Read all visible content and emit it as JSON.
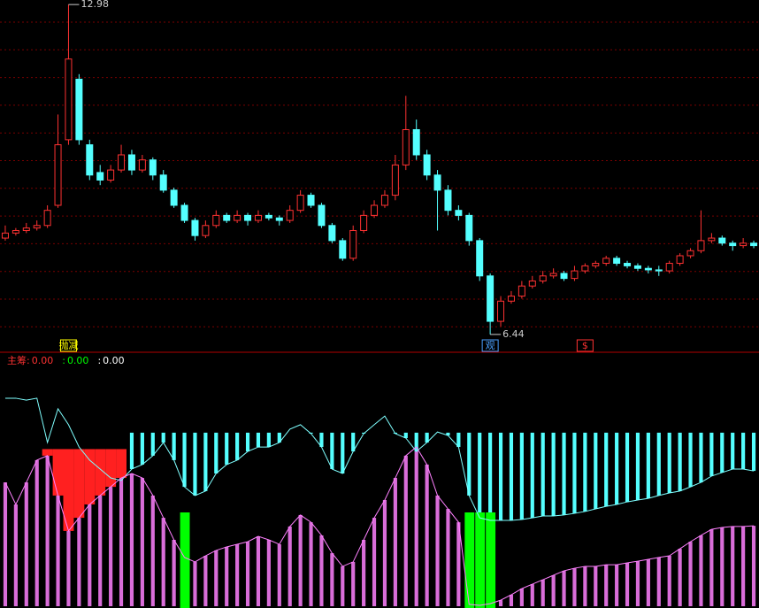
{
  "chart_data": [
    {
      "type": "candlestick",
      "up_color": "#ff3232",
      "down_color": "#54ffff",
      "ylim": [
        6.14,
        13.07
      ],
      "ohlc": [
        [
          8.35,
          8.6,
          8.3,
          8.45
        ],
        [
          8.45,
          8.55,
          8.4,
          8.5
        ],
        [
          8.5,
          8.65,
          8.45,
          8.55
        ],
        [
          8.55,
          8.7,
          8.5,
          8.6
        ],
        [
          8.6,
          9.0,
          8.55,
          8.9
        ],
        [
          9.0,
          10.8,
          8.95,
          10.2
        ],
        [
          10.3,
          12.98,
          10.2,
          11.9
        ],
        [
          11.5,
          11.6,
          10.2,
          10.3
        ],
        [
          10.2,
          10.3,
          9.5,
          9.6
        ],
        [
          9.65,
          9.8,
          9.4,
          9.5
        ],
        [
          9.5,
          9.8,
          9.45,
          9.7
        ],
        [
          9.7,
          10.2,
          9.65,
          10.0
        ],
        [
          10.0,
          10.1,
          9.6,
          9.7
        ],
        [
          9.7,
          10.0,
          9.65,
          9.9
        ],
        [
          9.9,
          9.95,
          9.5,
          9.6
        ],
        [
          9.6,
          9.7,
          9.25,
          9.3
        ],
        [
          9.3,
          9.35,
          8.95,
          9.0
        ],
        [
          9.0,
          9.05,
          8.65,
          8.7
        ],
        [
          8.7,
          8.75,
          8.3,
          8.4
        ],
        [
          8.4,
          8.7,
          8.35,
          8.6
        ],
        [
          8.6,
          8.9,
          8.55,
          8.8
        ],
        [
          8.8,
          8.85,
          8.65,
          8.7
        ],
        [
          8.7,
          8.9,
          8.65,
          8.8
        ],
        [
          8.8,
          8.85,
          8.6,
          8.7
        ],
        [
          8.7,
          8.9,
          8.65,
          8.8
        ],
        [
          8.8,
          8.85,
          8.7,
          8.75
        ],
        [
          8.75,
          8.8,
          8.6,
          8.7
        ],
        [
          8.7,
          9.0,
          8.65,
          8.9
        ],
        [
          8.9,
          9.3,
          8.85,
          9.2
        ],
        [
          9.2,
          9.25,
          8.95,
          9.0
        ],
        [
          9.0,
          9.05,
          8.55,
          8.6
        ],
        [
          8.6,
          8.65,
          8.25,
          8.3
        ],
        [
          8.3,
          8.35,
          7.9,
          7.95
        ],
        [
          7.95,
          8.6,
          7.9,
          8.5
        ],
        [
          8.5,
          8.9,
          8.45,
          8.8
        ],
        [
          8.8,
          9.1,
          8.75,
          9.0
        ],
        [
          9.0,
          9.3,
          8.95,
          9.2
        ],
        [
          9.2,
          10.0,
          9.1,
          9.8
        ],
        [
          9.8,
          11.17,
          9.7,
          10.5
        ],
        [
          10.5,
          10.7,
          9.9,
          10.0
        ],
        [
          10.0,
          10.1,
          9.5,
          9.6
        ],
        [
          9.6,
          9.7,
          8.5,
          9.3
        ],
        [
          9.3,
          9.4,
          8.8,
          8.9
        ],
        [
          8.9,
          9.0,
          8.7,
          8.8
        ],
        [
          8.8,
          8.85,
          8.2,
          8.3
        ],
        [
          8.3,
          8.35,
          7.5,
          7.6
        ],
        [
          7.6,
          7.65,
          6.44,
          6.7
        ],
        [
          6.7,
          7.2,
          6.6,
          7.1
        ],
        [
          7.1,
          7.3,
          7.05,
          7.2
        ],
        [
          7.2,
          7.5,
          7.15,
          7.4
        ],
        [
          7.4,
          7.6,
          7.35,
          7.5
        ],
        [
          7.5,
          7.7,
          7.45,
          7.6
        ],
        [
          7.6,
          7.75,
          7.55,
          7.65
        ],
        [
          7.65,
          7.7,
          7.5,
          7.55
        ],
        [
          7.55,
          7.8,
          7.5,
          7.7
        ],
        [
          7.7,
          7.85,
          7.65,
          7.8
        ],
        [
          7.8,
          7.9,
          7.75,
          7.85
        ],
        [
          7.85,
          8.0,
          7.8,
          7.95
        ],
        [
          7.95,
          8.0,
          7.8,
          7.85
        ],
        [
          7.85,
          7.9,
          7.75,
          7.8
        ],
        [
          7.8,
          7.85,
          7.7,
          7.75
        ],
        [
          7.75,
          7.8,
          7.65,
          7.72
        ],
        [
          7.72,
          7.8,
          7.6,
          7.7
        ],
        [
          7.7,
          7.9,
          7.65,
          7.85
        ],
        [
          7.85,
          8.05,
          7.8,
          8.0
        ],
        [
          8.0,
          8.15,
          7.95,
          8.1
        ],
        [
          8.1,
          8.9,
          8.05,
          8.3
        ],
        [
          8.3,
          8.45,
          8.25,
          8.35
        ],
        [
          8.35,
          8.4,
          8.2,
          8.25
        ],
        [
          8.25,
          8.3,
          8.1,
          8.2
        ],
        [
          8.2,
          8.35,
          8.15,
          8.25
        ],
        [
          8.25,
          8.3,
          8.15,
          8.2
        ]
      ],
      "annotations": [
        {
          "index": 6,
          "value": 12.98
        },
        {
          "index": 46,
          "value": 6.44
        }
      ],
      "signals": [
        {
          "index": 6,
          "label": "抛减",
          "color": "#ffff00"
        },
        {
          "index": 46,
          "label": "观",
          "color": "#4aa0ff"
        },
        {
          "index": 55,
          "label": "$",
          "color": "#ff3232"
        }
      ]
    },
    {
      "type": "indicator",
      "ylim": [
        0,
        100
      ],
      "baseline": 74,
      "red_level": 67,
      "legend": [
        {
          "name": "主筹:",
          "value": 0,
          "value_label": "0.00",
          "color": "#ff3232"
        },
        {
          "name": ":",
          "value": 0,
          "value_label": "0.00",
          "color": "#00ff00"
        },
        {
          "name": ":",
          "value": 0,
          "value_label": "0.00",
          "color": "#ffffff"
        }
      ],
      "upper_line": {
        "color": "#7fffff",
        "bar_color": "#54ffff",
        "values": [
          88.7,
          88.7,
          87.9,
          88.7,
          69.8,
          84.2,
          77.4,
          67.9,
          62.3,
          58.5,
          54.7,
          53.6,
          58.5,
          60.4,
          64.2,
          69.8,
          62.3,
          50.9,
          47.2,
          49.1,
          56.6,
          60.4,
          62.3,
          66.0,
          67.9,
          67.9,
          69.8,
          75.5,
          77.4,
          73.6,
          67.9,
          58.5,
          56.6,
          66.0,
          73.6,
          77.4,
          81.1,
          73.6,
          71.7,
          66.0,
          69.8,
          74.3,
          72.8,
          67.9,
          47.2,
          37.7,
          36.6,
          36.6,
          36.6,
          37.0,
          37.7,
          38.5,
          38.5,
          38.9,
          39.6,
          40.4,
          41.5,
          42.6,
          43.4,
          44.5,
          45.3,
          46.0,
          47.2,
          48.3,
          49.1,
          50.9,
          52.8,
          55.5,
          57.0,
          58.5,
          58.5,
          57.7
        ]
      },
      "lower_line": {
        "color": "#ff80ff",
        "values": [
          52.8,
          43.4,
          52.8,
          62.3,
          64.2,
          47.2,
          32.1,
          37.7,
          43.4,
          47.2,
          50.9,
          54.7,
          56.6,
          54.7,
          47.2,
          37.7,
          28.3,
          20.8,
          18.9,
          21.5,
          23.8,
          25.3,
          26.4,
          27.5,
          29.8,
          28.3,
          26.4,
          34.0,
          38.9,
          35.8,
          30.2,
          22.6,
          17.0,
          18.9,
          28.3,
          37.7,
          45.3,
          54.7,
          64.2,
          67.9,
          60.4,
          47.2,
          41.5,
          35.8,
          0.8,
          0.4,
          1.1,
          2.6,
          4.9,
          7.5,
          9.4,
          11.3,
          13.2,
          15.1,
          16.2,
          17.0,
          17.0,
          17.7,
          17.7,
          18.5,
          19.2,
          20.0,
          20.8,
          21.5,
          24.5,
          27.5,
          30.2,
          32.8,
          33.6,
          34.0,
          34.0,
          34.3
        ]
      },
      "red_bars": {
        "color": "#ff2020",
        "values": [
          null,
          null,
          null,
          null,
          64.2,
          47.2,
          32.1,
          37.7,
          43.4,
          47.2,
          50.9,
          54.7,
          null,
          null,
          null,
          null,
          null,
          null,
          null,
          null,
          null,
          null,
          null,
          null,
          null,
          null,
          null,
          null,
          null,
          null,
          null,
          null,
          null,
          null,
          null,
          null,
          null,
          null,
          null,
          null,
          null,
          null,
          null,
          null,
          null,
          null,
          null,
          null,
          null,
          null,
          null,
          null,
          null,
          null,
          null,
          null,
          null,
          null,
          null,
          null,
          null,
          null,
          null,
          null,
          null,
          null,
          null,
          null,
          null,
          null,
          null,
          null
        ]
      },
      "green_bars": {
        "color": "#00ff00",
        "values": [
          null,
          null,
          null,
          null,
          null,
          null,
          null,
          null,
          null,
          null,
          null,
          null,
          null,
          null,
          null,
          null,
          null,
          40,
          null,
          null,
          null,
          null,
          null,
          null,
          null,
          null,
          null,
          null,
          null,
          null,
          null,
          null,
          null,
          null,
          null,
          null,
          null,
          null,
          null,
          null,
          null,
          null,
          null,
          null,
          40,
          40,
          40,
          null,
          null,
          null,
          null,
          null,
          null,
          null,
          null,
          null,
          null,
          null,
          null,
          null,
          null,
          null,
          null,
          null,
          null,
          null,
          null,
          null,
          null,
          null,
          null,
          null
        ]
      }
    }
  ]
}
